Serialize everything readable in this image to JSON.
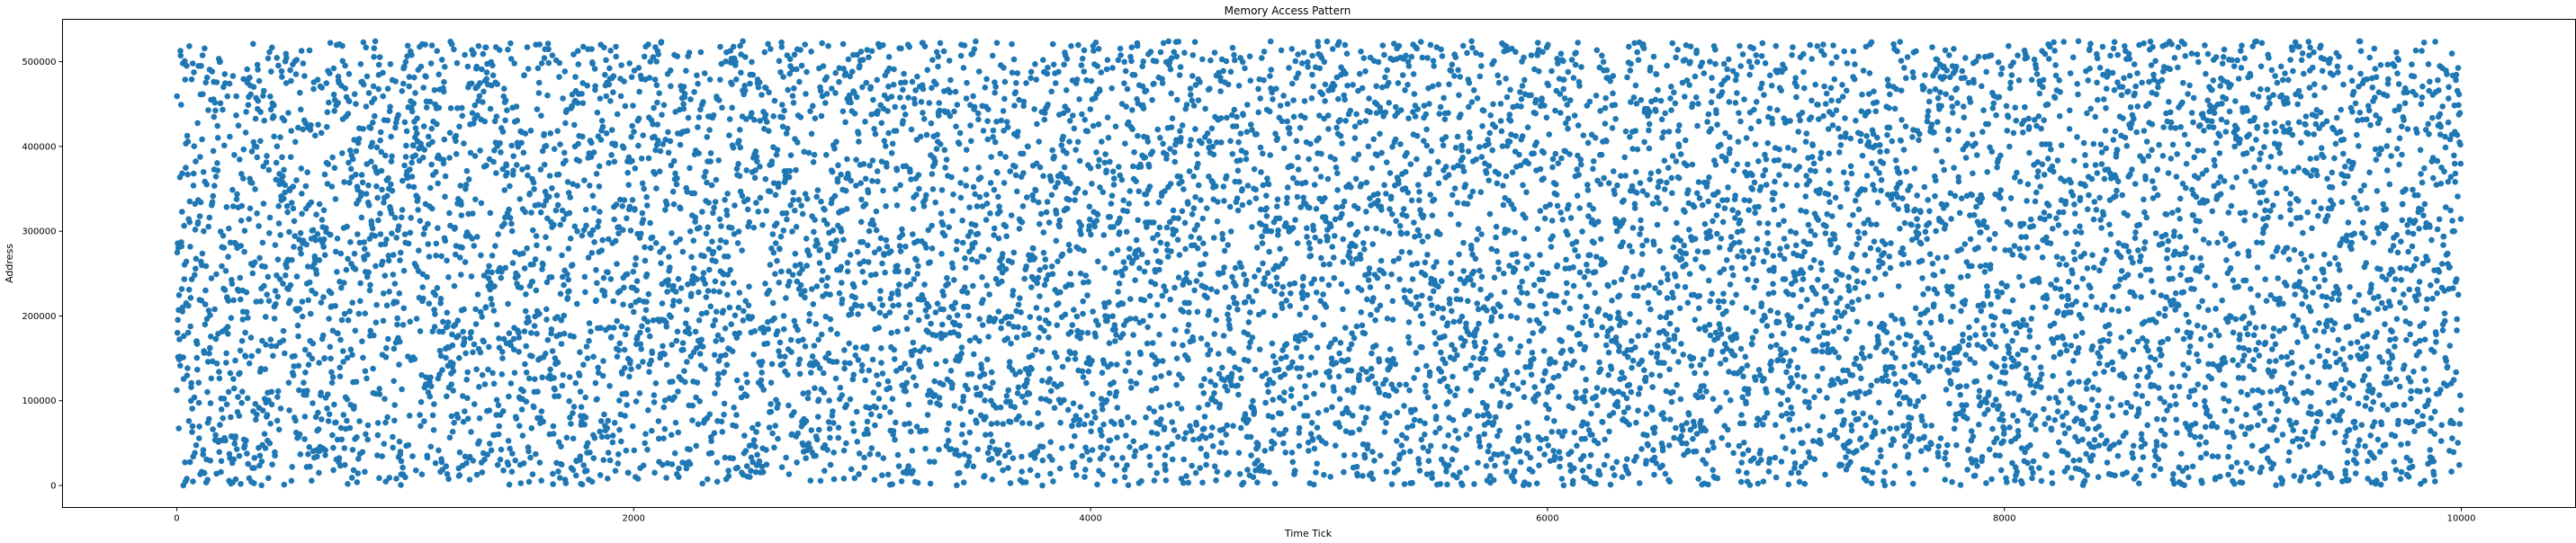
{
  "chart_data": {
    "type": "scatter",
    "title": "Memory Access Pattern",
    "xlabel": "Time Tick",
    "ylabel": "Address",
    "xlim": [
      -500,
      10500
    ],
    "ylim": [
      -26000,
      550000
    ],
    "xticks": [
      0,
      2000,
      4000,
      6000,
      8000,
      10000
    ],
    "xtick_labels": [
      "0",
      "2000",
      "4000",
      "6000",
      "8000",
      "10000"
    ],
    "yticks": [
      0,
      100000,
      200000,
      300000,
      400000,
      500000
    ],
    "ytick_labels": [
      "0",
      "100000",
      "200000",
      "300000",
      "400000",
      "500000"
    ],
    "grid": false,
    "legend": "none",
    "marker": "circle",
    "color": "#1f77b4",
    "point_count": 10000,
    "x_start": 0,
    "x_step": 1,
    "address_max": 524288,
    "distribution": "uniform random addresses over [0, 524288) at every tick 0–9999"
  }
}
